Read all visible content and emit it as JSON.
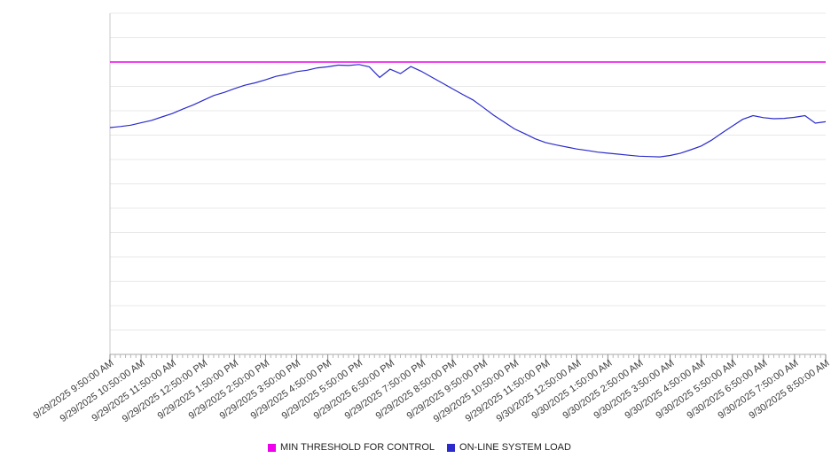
{
  "legend": {
    "items": [
      {
        "label": "MIN THRESHOLD FOR CONTROL",
        "color": "#ee00ee"
      },
      {
        "label": "ON-LINE SYSTEM LOAD",
        "color": "#2b2bcc"
      }
    ]
  },
  "chart_data": {
    "type": "line",
    "title": "",
    "xlabel": "",
    "ylabel": "",
    "ylim": [
      0,
      100
    ],
    "grid": "horizontal",
    "grid_divisions": 14,
    "y_axis_labels_visible": false,
    "legend_position": "bottom",
    "x_major_tick_interval": "1 hour",
    "x_minor_tick_interval": "10 minutes",
    "x_labels": [
      "9/29/2025 9:50:00 AM",
      "9/29/2025 10:50:00 AM",
      "9/29/2025 11:50:00 AM",
      "9/29/2025 12:50:00 PM",
      "9/29/2025 1:50:00 PM",
      "9/29/2025 2:50:00 PM",
      "9/29/2025 3:50:00 PM",
      "9/29/2025 4:50:00 PM",
      "9/29/2025 5:50:00 PM",
      "9/29/2025 6:50:00 PM",
      "9/29/2025 7:50:00 PM",
      "9/29/2025 8:50:00 PM",
      "9/29/2025 9:50:00 PM",
      "9/29/2025 10:50:00 PM",
      "9/29/2025 11:50:00 PM",
      "9/30/2025 12:50:00 AM",
      "9/30/2025 1:50:00 AM",
      "9/30/2025 2:50:00 AM",
      "9/30/2025 3:50:00 AM",
      "9/30/2025 4:50:00 AM",
      "9/30/2025 5:50:00 AM",
      "9/30/2025 6:50:00 AM",
      "9/30/2025 7:50:00 AM",
      "9/30/2025 8:50:00 AM"
    ],
    "series": [
      {
        "name": "MIN THRESHOLD FOR CONTROL",
        "type": "threshold",
        "color": "#ee00ee",
        "value": 85.7
      },
      {
        "name": "ON-LINE SYSTEM LOAD",
        "type": "line",
        "color": "#2b2bcc",
        "sample_interval_minutes": 20,
        "start": "9/29/2025 9:50:00 AM",
        "end": "9/30/2025 8:50:00 AM",
        "values": [
          66.5,
          66.8,
          67.2,
          67.9,
          68.6,
          69.6,
          70.6,
          71.9,
          73.1,
          74.5,
          75.9,
          76.8,
          77.9,
          78.9,
          79.6,
          80.5,
          81.5,
          82.1,
          82.9,
          83.3,
          84.0,
          84.3,
          84.8,
          84.7,
          85.0,
          84.3,
          81.2,
          83.6,
          82.3,
          84.4,
          83.0,
          81.3,
          79.6,
          77.9,
          76.2,
          74.6,
          72.4,
          70.1,
          68.1,
          66.1,
          64.7,
          63.2,
          62.1,
          61.4,
          60.8,
          60.2,
          59.8,
          59.3,
          59.0,
          58.7,
          58.4,
          58.1,
          58.0,
          57.9,
          58.3,
          59.0,
          60.0,
          61.1,
          62.8,
          64.9,
          66.9,
          68.9,
          70.0,
          69.4,
          69.1,
          69.2,
          69.5,
          70.0,
          67.8,
          68.2
        ]
      }
    ]
  }
}
